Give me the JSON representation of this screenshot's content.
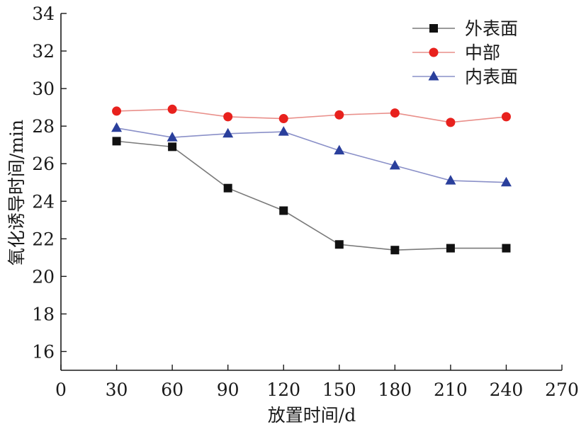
{
  "chart_data": {
    "type": "line",
    "xlabel": "放置时间/d",
    "ylabel": "氧化诱导时间/min",
    "xlim": [
      0,
      270
    ],
    "ylim": [
      15,
      34
    ],
    "x_ticks": [
      0,
      30,
      60,
      90,
      120,
      150,
      180,
      210,
      240,
      270
    ],
    "y_ticks": [
      16,
      18,
      20,
      22,
      24,
      26,
      28,
      30,
      32,
      34
    ],
    "x": [
      30,
      60,
      90,
      120,
      150,
      180,
      210,
      240
    ],
    "grid": false,
    "legend_position": "top-right",
    "series": [
      {
        "name": "外表面",
        "marker": "square",
        "marker_color": "#111111",
        "line_color": "#7a7a7a",
        "values": [
          27.2,
          26.9,
          24.7,
          23.5,
          21.7,
          21.4,
          21.5,
          21.5
        ]
      },
      {
        "name": "中部",
        "marker": "circle",
        "marker_color": "#e8211d",
        "line_color": "#e98f8a",
        "values": [
          28.8,
          28.9,
          28.5,
          28.4,
          28.6,
          28.7,
          28.2,
          28.5
        ]
      },
      {
        "name": "内表面",
        "marker": "triangle",
        "marker_color": "#2a3f9c",
        "line_color": "#8a90c8",
        "values": [
          27.9,
          27.4,
          27.6,
          27.7,
          26.7,
          25.9,
          25.1,
          25.0
        ]
      }
    ]
  }
}
